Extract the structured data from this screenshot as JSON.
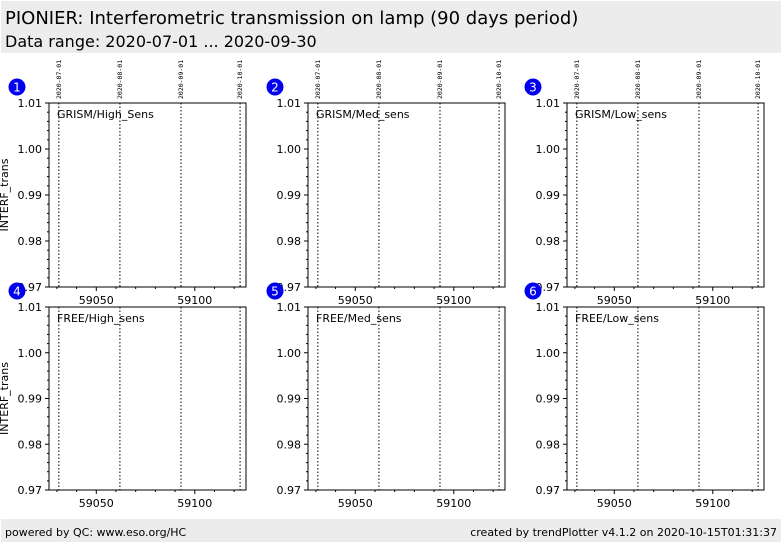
{
  "header": {
    "title": "PIONIER: Interferometric transmission on lamp (90 days period)",
    "subtitle": "Data range: 2020-07-01 ... 2020-09-30"
  },
  "footer": {
    "left": "powered by QC: www.eso.org/HC",
    "right": "created by trendPlotter v4.1.2 on 2020-10-15T01:31:37"
  },
  "colors": {
    "badge": "#0000ee",
    "background": "#ffffff",
    "band": "#ececec"
  },
  "chart_data": [
    {
      "type": "scatter",
      "index": "1",
      "label": "GRISM/High_Sens",
      "ylabel": "INTERF_trans",
      "xlim": [
        59026,
        59126
      ],
      "ylim": [
        0.97,
        1.01
      ],
      "xticks": [
        59050,
        59100
      ],
      "yticks": [
        0.97,
        0.98,
        0.99,
        1.0,
        1.01
      ],
      "ytick_labels": [
        "0.97",
        "0.98",
        "0.99",
        "1.00",
        "1.01"
      ],
      "date_markers": [
        {
          "mjd": 59031,
          "label": "2020-07-01"
        },
        {
          "mjd": 59062,
          "label": "2020-08-01"
        },
        {
          "mjd": 59093,
          "label": "2020-09-01"
        },
        {
          "mjd": 59123,
          "label": "2020-10-01"
        }
      ],
      "series": []
    },
    {
      "type": "scatter",
      "index": "2",
      "label": "GRISM/Med_sens",
      "ylabel": "",
      "xlim": [
        59026,
        59126
      ],
      "ylim": [
        0.97,
        1.01
      ],
      "xticks": [
        59050,
        59100
      ],
      "yticks": [
        0.97,
        0.98,
        0.99,
        1.0,
        1.01
      ],
      "ytick_labels": [
        "0.97",
        "0.98",
        "0.99",
        "1.00",
        "1.01"
      ],
      "date_markers": [
        {
          "mjd": 59031,
          "label": "2020-07-01"
        },
        {
          "mjd": 59062,
          "label": "2020-08-01"
        },
        {
          "mjd": 59093,
          "label": "2020-09-01"
        },
        {
          "mjd": 59123,
          "label": "2020-10-01"
        }
      ],
      "series": []
    },
    {
      "type": "scatter",
      "index": "3",
      "label": "GRISM/Low_sens",
      "ylabel": "",
      "xlim": [
        59026,
        59126
      ],
      "ylim": [
        0.97,
        1.01
      ],
      "xticks": [
        59050,
        59100
      ],
      "yticks": [
        0.97,
        0.98,
        0.99,
        1.0,
        1.01
      ],
      "ytick_labels": [
        "0.97",
        "0.98",
        "0.99",
        "1.00",
        "1.01"
      ],
      "date_markers": [
        {
          "mjd": 59031,
          "label": "2020-07-01"
        },
        {
          "mjd": 59062,
          "label": "2020-08-01"
        },
        {
          "mjd": 59093,
          "label": "2020-09-01"
        },
        {
          "mjd": 59123,
          "label": "2020-10-01"
        }
      ],
      "series": []
    },
    {
      "type": "scatter",
      "index": "4",
      "label": "FREE/High_sens",
      "ylabel": "INTERF_trans",
      "xlim": [
        59026,
        59126
      ],
      "ylim": [
        0.97,
        1.01
      ],
      "xticks": [
        59050,
        59100
      ],
      "yticks": [
        0.97,
        0.98,
        0.99,
        1.0,
        1.01
      ],
      "ytick_labels": [
        "0.97",
        "0.98",
        "0.99",
        "1.00",
        "1.01"
      ],
      "date_markers": [
        {
          "mjd": 59031,
          "label": ""
        },
        {
          "mjd": 59062,
          "label": ""
        },
        {
          "mjd": 59093,
          "label": ""
        },
        {
          "mjd": 59123,
          "label": ""
        }
      ],
      "series": []
    },
    {
      "type": "scatter",
      "index": "5",
      "label": "FREE/Med_sens",
      "ylabel": "",
      "xlim": [
        59026,
        59126
      ],
      "ylim": [
        0.97,
        1.01
      ],
      "xticks": [
        59050,
        59100
      ],
      "yticks": [
        0.97,
        0.98,
        0.99,
        1.0,
        1.01
      ],
      "ytick_labels": [
        "0.97",
        "0.98",
        "0.99",
        "1.00",
        "1.01"
      ],
      "date_markers": [
        {
          "mjd": 59031,
          "label": ""
        },
        {
          "mjd": 59062,
          "label": ""
        },
        {
          "mjd": 59093,
          "label": ""
        },
        {
          "mjd": 59123,
          "label": ""
        }
      ],
      "series": []
    },
    {
      "type": "scatter",
      "index": "6",
      "label": "FREE/Low_sens",
      "ylabel": "",
      "xlim": [
        59026,
        59126
      ],
      "ylim": [
        0.97,
        1.01
      ],
      "xticks": [
        59050,
        59100
      ],
      "yticks": [
        0.97,
        0.98,
        0.99,
        1.0,
        1.01
      ],
      "ytick_labels": [
        "0.97",
        "0.98",
        "0.99",
        "1.00",
        "1.01"
      ],
      "date_markers": [
        {
          "mjd": 59031,
          "label": ""
        },
        {
          "mjd": 59062,
          "label": ""
        },
        {
          "mjd": 59093,
          "label": ""
        },
        {
          "mjd": 59123,
          "label": ""
        }
      ],
      "series": []
    }
  ]
}
